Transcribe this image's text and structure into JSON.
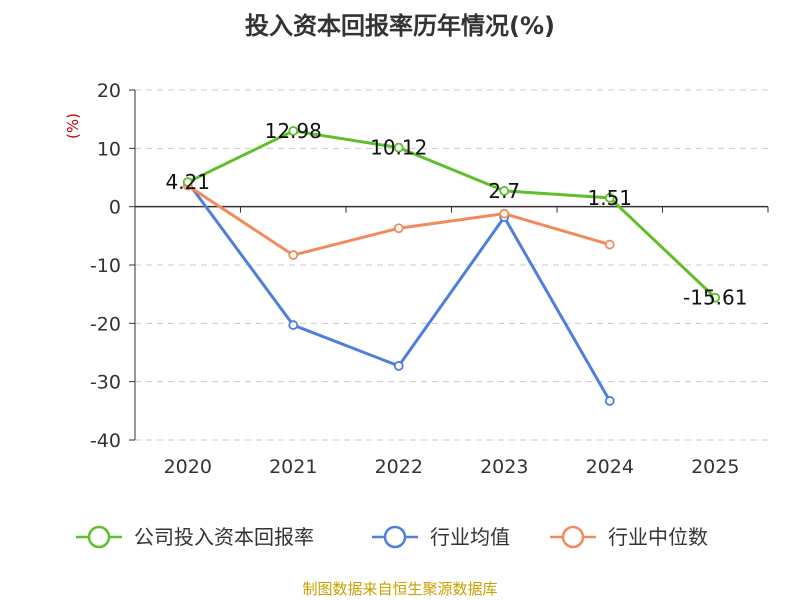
{
  "colors": {
    "company": "#5fbf2b",
    "industry_avg": "#4e7fdb",
    "industry_median": "#f28b5c",
    "grid": "#cccccc",
    "axis": "#333333",
    "unit": "#cc0000",
    "source": "#c8a000"
  },
  "chart_data": {
    "type": "line",
    "title": "投入资本回报率历年情况(%)",
    "ylabel": "(%)",
    "xlabel": "",
    "categories": [
      "2020",
      "2021",
      "2022",
      "2023",
      "2024",
      "2025"
    ],
    "ylim": [
      -40,
      20
    ],
    "yticks": [
      20,
      10,
      0,
      -10,
      -20,
      -30,
      -40
    ],
    "grid": true,
    "legend_position": "bottom",
    "series": [
      {
        "name": "公司投入资本回报率",
        "key": "company",
        "values": [
          4.21,
          12.98,
          10.12,
          2.7,
          1.51,
          -15.61
        ],
        "labels": true
      },
      {
        "name": "行业均值",
        "key": "industry_avg",
        "values": [
          4.2,
          -20.3,
          -27.3,
          -1.8,
          -33.3,
          null
        ],
        "labels": false
      },
      {
        "name": "行业中位数",
        "key": "industry_median",
        "values": [
          3.6,
          -8.3,
          -3.7,
          -1.2,
          -6.5,
          null
        ],
        "labels": false
      }
    ],
    "data_labels": [
      "4.21",
      "12.98",
      "10.12",
      "2.7",
      "1.51",
      "-15.61"
    ]
  },
  "footer": {
    "source": "制图数据来自恒生聚源数据库"
  }
}
